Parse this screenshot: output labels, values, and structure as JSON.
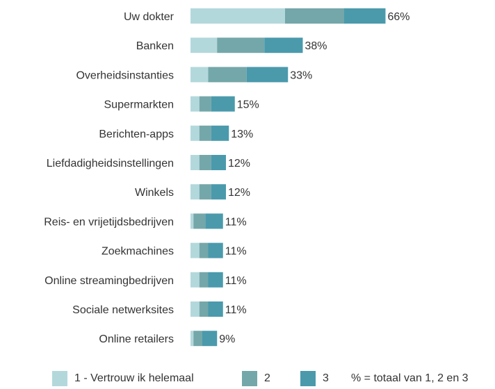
{
  "chart_data": {
    "type": "bar",
    "orientation": "horizontal",
    "stacked": true,
    "categories": [
      "Uw dokter",
      "Banken",
      "Overheidsinstanties",
      "Supermarkten",
      "Berichten-apps",
      "Liefdadigheidsinstellingen",
      "Winkels",
      "Reis- en vrijetijdsbedrijven",
      "Zoekmachines",
      "Online streamingbedrijven",
      "Sociale netwerksites",
      "Online retailers"
    ],
    "series": [
      {
        "name": "1 - Vertrouw ik helemaal",
        "color": "#b3d8dc",
        "values": [
          32,
          9,
          6,
          3,
          3,
          3,
          3,
          1,
          3,
          3,
          3,
          1
        ]
      },
      {
        "name": "2",
        "color": "#74a7a9",
        "values": [
          20,
          16,
          13,
          4,
          4,
          4,
          4,
          4,
          3,
          3,
          3,
          3
        ]
      },
      {
        "name": "3",
        "color": "#4a9aac",
        "values": [
          14,
          13,
          14,
          8,
          6,
          5,
          5,
          6,
          5,
          5,
          5,
          5
        ]
      }
    ],
    "totals": [
      66,
      38,
      33,
      15,
      13,
      12,
      12,
      11,
      11,
      11,
      11,
      9
    ],
    "total_labels": [
      "66%",
      "38%",
      "33%",
      "15%",
      "13%",
      "12%",
      "12%",
      "11%",
      "11%",
      "11%",
      "11%",
      "9%"
    ],
    "legend_note": "% = totaal van 1, 2 en 3",
    "legend_position": "bottom",
    "grid": false,
    "xlim": [
      0,
      66
    ]
  }
}
